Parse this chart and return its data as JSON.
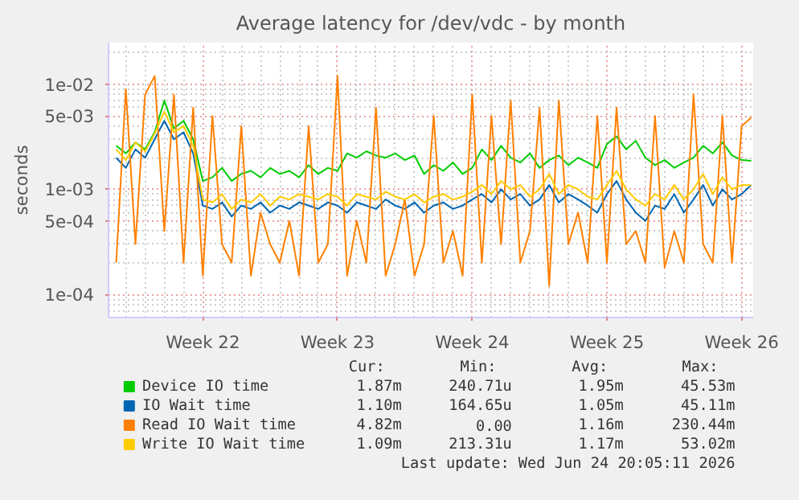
{
  "chart_data": {
    "type": "line",
    "title": "Average latency for /dev/vdc - by month",
    "ylabel": "seconds",
    "log": true,
    "grid": true,
    "legend": "bottom",
    "xlim": [
      "2026-05-20T02:24",
      "2026-06-22T14:24"
    ],
    "ylim": [
      6e-05,
      0.025
    ],
    "xticks": [
      {
        "value": "2026-05-25",
        "label": "Week 22"
      },
      {
        "value": "2026-06-01",
        "label": "Week 23"
      },
      {
        "value": "2026-06-08",
        "label": "Week 24"
      },
      {
        "value": "2026-06-15",
        "label": "Week 25"
      },
      {
        "value": "2026-06-22",
        "label": "Week 26"
      }
    ],
    "yticks": [
      {
        "value": 0.0001,
        "label": "1e-04"
      },
      {
        "value": 0.0005,
        "label": "5e-04"
      },
      {
        "value": 0.001,
        "label": "1e-03"
      },
      {
        "value": 0.005,
        "label": "5e-03"
      },
      {
        "value": 0.01,
        "label": "1e-02"
      }
    ],
    "x": [
      "2026-05-20T12:00",
      "2026-05-21T00:00",
      "2026-05-21T12:00",
      "2026-05-22T00:00",
      "2026-05-22T12:00",
      "2026-05-23T00:00",
      "2026-05-23T12:00",
      "2026-05-24T00:00",
      "2026-05-24T12:00",
      "2026-05-25T00:00",
      "2026-05-25T12:00",
      "2026-05-26T00:00",
      "2026-05-26T12:00",
      "2026-05-27T00:00",
      "2026-05-27T12:00",
      "2026-05-28T00:00",
      "2026-05-28T12:00",
      "2026-05-29T00:00",
      "2026-05-29T12:00",
      "2026-05-30T00:00",
      "2026-05-30T12:00",
      "2026-05-31T00:00",
      "2026-05-31T12:00",
      "2026-06-01T00:00",
      "2026-06-01T12:00",
      "2026-06-02T00:00",
      "2026-06-02T12:00",
      "2026-06-03T00:00",
      "2026-06-03T12:00",
      "2026-06-04T00:00",
      "2026-06-04T12:00",
      "2026-06-05T00:00",
      "2026-06-05T12:00",
      "2026-06-06T00:00",
      "2026-06-06T12:00",
      "2026-06-07T00:00",
      "2026-06-07T12:00",
      "2026-06-08T00:00",
      "2026-06-08T12:00",
      "2026-06-09T00:00",
      "2026-06-09T12:00",
      "2026-06-10T00:00",
      "2026-06-10T12:00",
      "2026-06-11T00:00",
      "2026-06-11T12:00",
      "2026-06-12T00:00",
      "2026-06-12T12:00",
      "2026-06-13T00:00",
      "2026-06-13T12:00",
      "2026-06-14T00:00",
      "2026-06-14T12:00",
      "2026-06-15T00:00",
      "2026-06-15T12:00",
      "2026-06-16T00:00",
      "2026-06-16T12:00",
      "2026-06-17T00:00",
      "2026-06-17T12:00",
      "2026-06-18T00:00",
      "2026-06-18T12:00",
      "2026-06-19T00:00",
      "2026-06-19T12:00",
      "2026-06-20T00:00",
      "2026-06-20T12:00",
      "2026-06-21T00:00",
      "2026-06-21T12:00",
      "2026-06-22T00:00",
      "2026-06-22T12:00"
    ],
    "series": [
      {
        "name": "Device IO time",
        "color": "#00cc00",
        "values": [
          0.0026,
          0.0022,
          0.0028,
          0.0024,
          0.0035,
          0.007,
          0.0038,
          0.0045,
          0.003,
          0.0012,
          0.0013,
          0.0016,
          0.0012,
          0.0014,
          0.0015,
          0.0013,
          0.0016,
          0.0014,
          0.0015,
          0.0013,
          0.0017,
          0.0014,
          0.0016,
          0.0015,
          0.0022,
          0.002,
          0.0023,
          0.0021,
          0.002,
          0.0022,
          0.0019,
          0.0021,
          0.0014,
          0.0017,
          0.0015,
          0.0018,
          0.0014,
          0.0016,
          0.0024,
          0.0019,
          0.0026,
          0.002,
          0.0018,
          0.0022,
          0.0016,
          0.0019,
          0.0021,
          0.0017,
          0.002,
          0.0018,
          0.0016,
          0.0027,
          0.0032,
          0.0024,
          0.0029,
          0.002,
          0.0017,
          0.0019,
          0.0016,
          0.0018,
          0.002,
          0.0026,
          0.0022,
          0.0028,
          0.0021,
          0.0019,
          0.00187
        ]
      },
      {
        "name": "IO Wait time",
        "color": "#0066b3",
        "values": [
          0.002,
          0.0016,
          0.0024,
          0.002,
          0.003,
          0.0045,
          0.003,
          0.0035,
          0.0022,
          0.0007,
          0.00065,
          0.00075,
          0.00055,
          0.0007,
          0.00065,
          0.00075,
          0.0006,
          0.0007,
          0.00065,
          0.00075,
          0.0007,
          0.00065,
          0.00075,
          0.0007,
          0.0006,
          0.00075,
          0.0007,
          0.00065,
          0.0008,
          0.0007,
          0.00065,
          0.00075,
          0.0006,
          0.0007,
          0.00075,
          0.00065,
          0.0007,
          0.0008,
          0.0009,
          0.00075,
          0.001,
          0.0008,
          0.0009,
          0.0007,
          0.0008,
          0.0011,
          0.00075,
          0.0009,
          0.0008,
          0.0007,
          0.0006,
          0.0009,
          0.0012,
          0.0008,
          0.0006,
          0.0005,
          0.0007,
          0.00065,
          0.0009,
          0.0006,
          0.0008,
          0.0011,
          0.0007,
          0.001,
          0.0008,
          0.0009,
          0.0011
        ]
      },
      {
        "name": "Read IO Wait time",
        "color": "#ff8000",
        "values": [
          0.0002,
          0.009,
          0.0003,
          0.008,
          0.012,
          0.0004,
          0.008,
          0.0002,
          0.006,
          0.00015,
          0.005,
          0.0003,
          0.0002,
          0.004,
          0.00015,
          0.0006,
          0.0003,
          0.0002,
          0.0005,
          0.00015,
          0.004,
          0.0002,
          0.0003,
          0.012,
          0.00015,
          0.0005,
          0.0002,
          0.006,
          0.00015,
          0.0003,
          0.0008,
          0.00015,
          0.0003,
          0.005,
          0.0002,
          0.0004,
          0.00015,
          0.008,
          0.0002,
          0.005,
          0.0003,
          0.007,
          0.0002,
          0.0004,
          0.006,
          0.00012,
          0.007,
          0.0003,
          0.0006,
          0.0002,
          0.005,
          0.0002,
          0.006,
          0.0003,
          0.0004,
          0.0002,
          0.005,
          0.00018,
          0.0004,
          0.0002,
          0.008,
          0.0003,
          0.0002,
          0.005,
          0.0002,
          0.004,
          0.00482
        ]
      },
      {
        "name": "Write IO Wait time",
        "color": "#ffcc00",
        "values": [
          0.0024,
          0.0019,
          0.0028,
          0.0023,
          0.0034,
          0.0055,
          0.0035,
          0.004,
          0.0026,
          0.0008,
          0.00075,
          0.0009,
          0.00065,
          0.0008,
          0.00075,
          0.0009,
          0.0007,
          0.00085,
          0.0008,
          0.0009,
          0.00085,
          0.0008,
          0.0009,
          0.00085,
          0.0007,
          0.0009,
          0.00085,
          0.0008,
          0.00095,
          0.00085,
          0.0008,
          0.0009,
          0.00075,
          0.00085,
          0.0009,
          0.0008,
          0.00085,
          0.00095,
          0.0011,
          0.0009,
          0.0012,
          0.001,
          0.0011,
          0.00085,
          0.001,
          0.0014,
          0.0009,
          0.0011,
          0.001,
          0.00085,
          0.0008,
          0.0011,
          0.0015,
          0.001,
          0.0008,
          0.0007,
          0.0009,
          0.0008,
          0.0011,
          0.0008,
          0.001,
          0.0014,
          0.0009,
          0.0013,
          0.001,
          0.0011,
          0.00109
        ]
      }
    ],
    "annotations": [
      "Cur:",
      "Min:",
      "Avg:",
      "Max:",
      "1.87m",
      "240.71u",
      "1.95m",
      "45.53m",
      "1.10m",
      "164.65u",
      "1.05m",
      "45.11m",
      "4.82m",
      "0.00",
      "1.16m",
      "230.44m",
      "1.09m",
      "213.31u",
      "1.17m",
      "53.02m",
      "Last update: Wed Jun 24 20:05:11 2026"
    ]
  }
}
